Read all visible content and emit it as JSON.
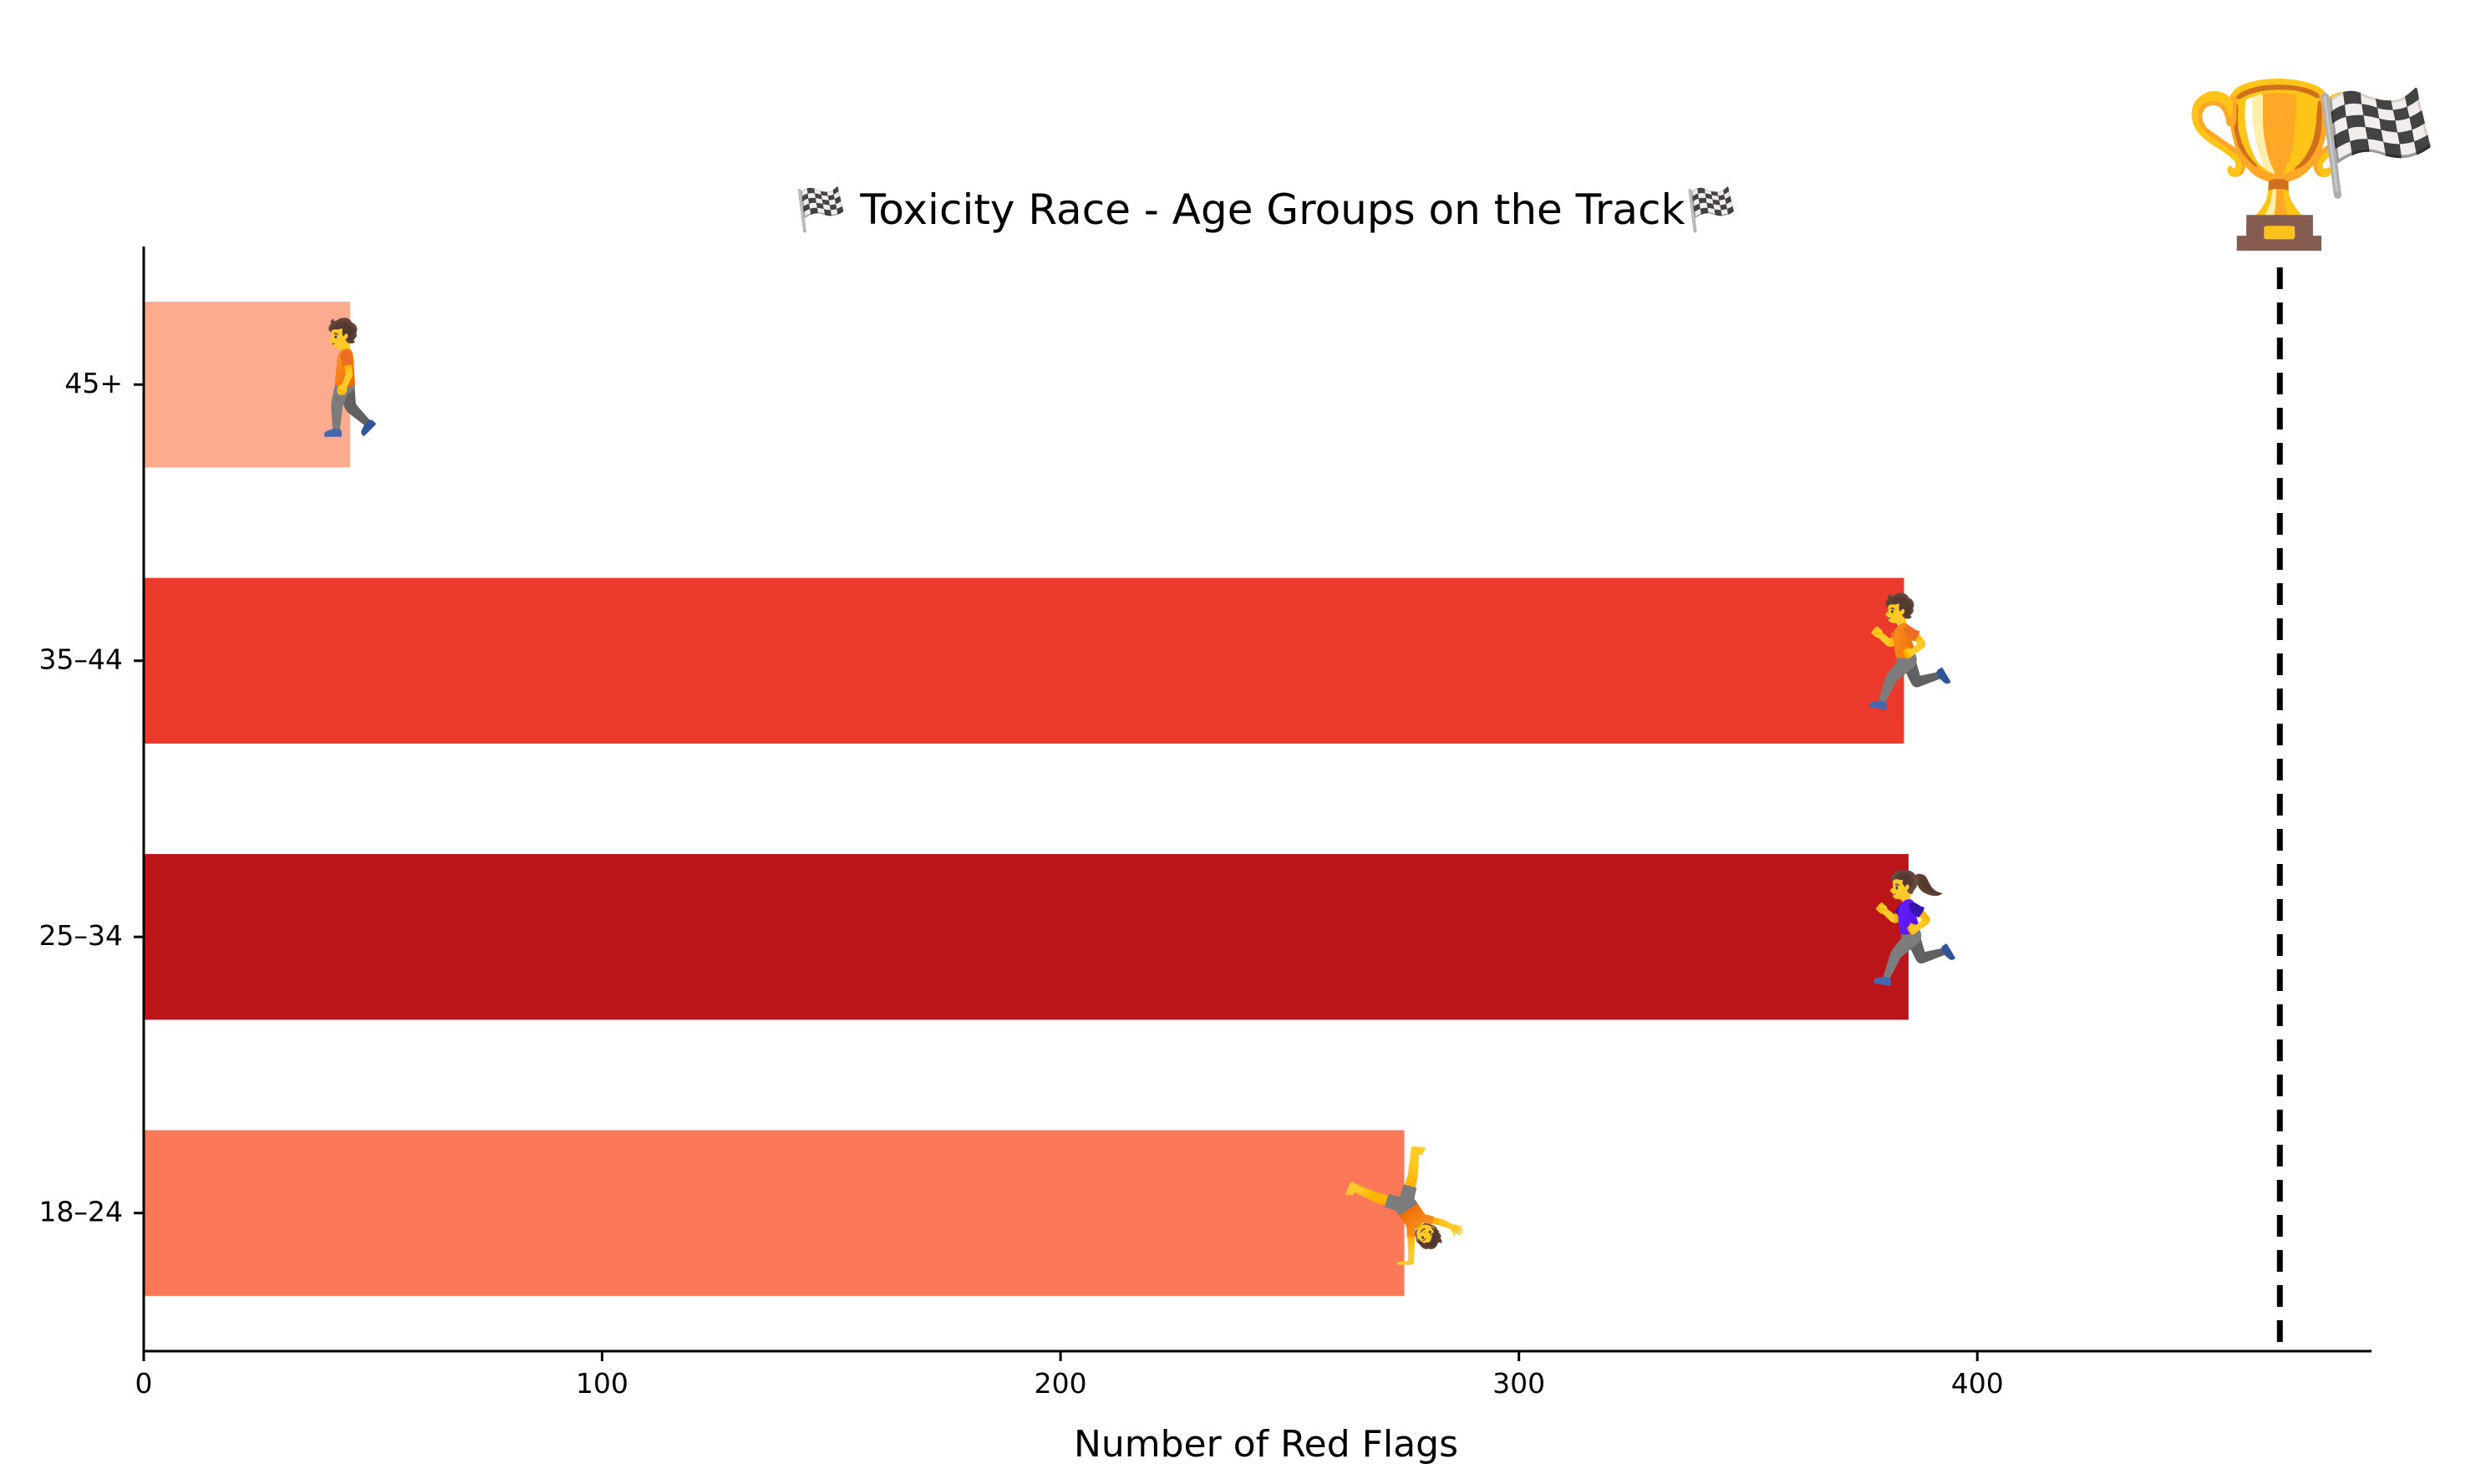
{
  "chart_data": {
    "type": "bar",
    "orientation": "horizontal",
    "title": "🏁 Toxicity Race - Age Groups on the Track🏁",
    "xlabel": "Number of Red Flags",
    "ylabel": "",
    "categories": [
      "18–24",
      "25–34",
      "35–44",
      "45+"
    ],
    "values": [
      275,
      385,
      384,
      45
    ],
    "bar_colors": [
      "#fb7858",
      "#bb151a",
      "#eb392b",
      "#fcab8e"
    ],
    "runner_icons": [
      "person-cartwheeling-icon",
      "woman-running-icon",
      "person-running-icon",
      "person-walking-icon"
    ],
    "runner_glyphs": [
      "🤸",
      "🏃‍♀️",
      "🏃",
      "🚶"
    ],
    "xlim": [
      0,
      486
    ],
    "xticks": [
      0,
      100,
      200,
      300,
      400
    ],
    "finish_line": 466,
    "finish_icons": [
      "trophy-icon",
      "checkered-flag-icon"
    ],
    "finish_glyphs": [
      "🏆",
      "🏁"
    ],
    "grid": false,
    "legend": "none"
  }
}
